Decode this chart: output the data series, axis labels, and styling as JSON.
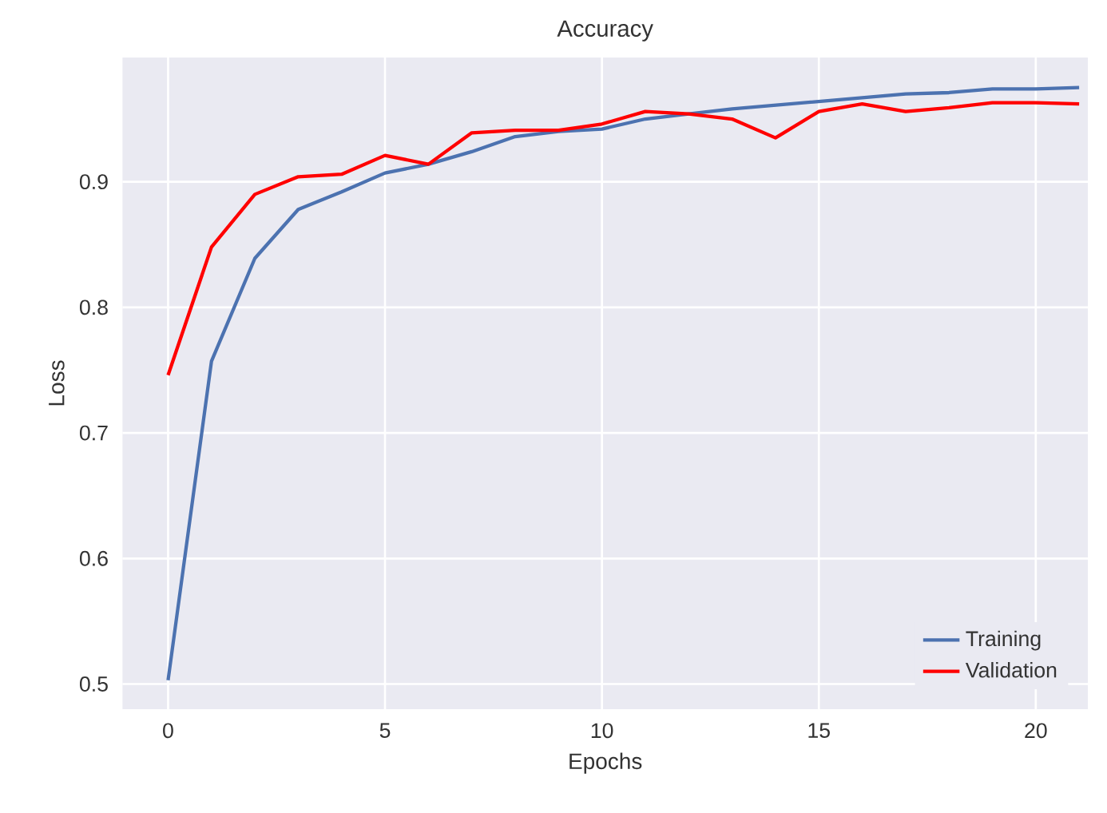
{
  "chart_data": {
    "type": "line",
    "title": "Accuracy",
    "xlabel": "Epochs",
    "ylabel": "Loss",
    "x": [
      0,
      1,
      2,
      3,
      4,
      5,
      6,
      7,
      8,
      9,
      10,
      11,
      12,
      13,
      14,
      15,
      16,
      17,
      18,
      19,
      20,
      21
    ],
    "series": [
      {
        "name": "Training",
        "color": "#4c72b0",
        "values": [
          0.503,
          0.757,
          0.839,
          0.878,
          0.892,
          0.907,
          0.914,
          0.924,
          0.936,
          0.94,
          0.942,
          0.95,
          0.954,
          0.958,
          0.961,
          0.964,
          0.967,
          0.97,
          0.971,
          0.974,
          0.974,
          0.975
        ]
      },
      {
        "name": "Validation",
        "color": "#ff0000",
        "values": [
          0.746,
          0.848,
          0.89,
          0.904,
          0.906,
          0.921,
          0.914,
          0.939,
          0.941,
          0.941,
          0.946,
          0.956,
          0.954,
          0.95,
          0.935,
          0.956,
          0.962,
          0.956,
          0.959,
          0.963,
          0.963,
          0.962
        ]
      }
    ],
    "xlim": [
      -1.05,
      21.2
    ],
    "ylim": [
      0.48,
      0.999
    ],
    "xticks": [
      0,
      5,
      10,
      15,
      20
    ],
    "yticks": [
      0.5,
      0.6,
      0.7,
      0.8,
      0.9
    ],
    "grid": true,
    "legend": "bottom right",
    "marker": "none",
    "line_style": "solid"
  }
}
